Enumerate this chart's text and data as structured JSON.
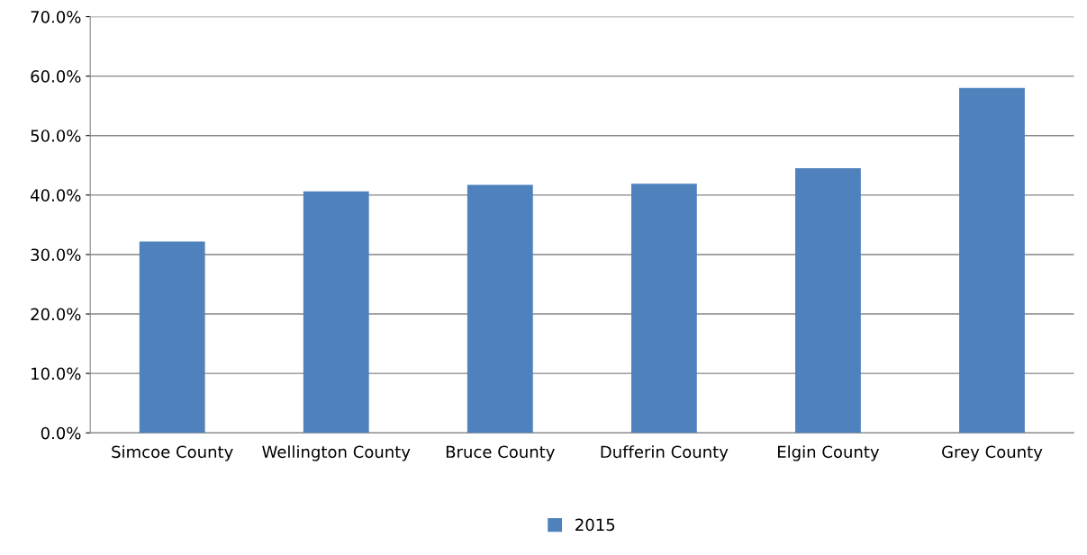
{
  "chart_data": {
    "type": "bar",
    "categories": [
      "Simcoe County",
      "Wellington County",
      "Bruce County",
      "Dufferin County",
      "Elgin County",
      "Grey County"
    ],
    "series": [
      {
        "name": "2015",
        "color": "#4f81bd",
        "values": [
          32.2,
          40.6,
          41.7,
          41.9,
          44.5,
          58.0
        ]
      }
    ],
    "ylim": [
      0,
      70
    ],
    "yticks": [
      {
        "value": 0,
        "label": "0.0%"
      },
      {
        "value": 10,
        "label": "10.0%"
      },
      {
        "value": 20,
        "label": "20.0%"
      },
      {
        "value": 30,
        "label": "30.0%"
      },
      {
        "value": 40,
        "label": "40.0%"
      },
      {
        "value": 50,
        "label": "50.0%"
      },
      {
        "value": 60,
        "label": "60.0%"
      },
      {
        "value": 70,
        "label": "70.0%"
      }
    ],
    "grid": "y",
    "legend": "bottom"
  }
}
